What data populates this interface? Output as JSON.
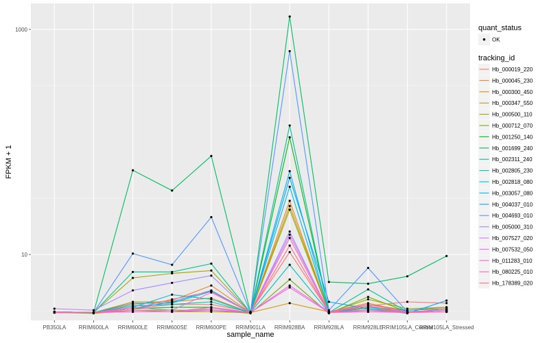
{
  "chart_data": {
    "type": "line",
    "xlabel": "sample_name",
    "ylabel": "FPKM + 1",
    "y_scale": "log10",
    "ylim": [
      2.6,
      1700
    ],
    "y_ticks": [
      10,
      1000
    ],
    "grid": true,
    "legend_position": "right",
    "categories": [
      "PB350LA",
      "RRIM600LA",
      "RRIM600LE",
      "RRIM600SE",
      "RRIM600PE",
      "RRIM901LA",
      "RRIM928BA",
      "RRIM928LA",
      "RRIM928LE",
      "RRIM105LA_Control",
      "RRIM105LA_Stressed"
    ],
    "quant_status_legend": {
      "title": "quant_status",
      "items": [
        "OK"
      ]
    },
    "tracking_legend_title": "tracking_id",
    "series": [
      {
        "name": "Hb_000019_220",
        "color": "#F8766D",
        "values": [
          3.1,
          3.05,
          3.3,
          3.6,
          3.6,
          3.1,
          10.5,
          3.1,
          3.5,
          3.8,
          3.7
        ]
      },
      {
        "name": "Hb_000045_230",
        "color": "#E9842C",
        "values": [
          3.1,
          3.05,
          3.6,
          3.9,
          5.3,
          3.05,
          30,
          3.05,
          3.6,
          3.2,
          3.4
        ]
      },
      {
        "name": "Hb_000300_450",
        "color": "#D69100",
        "values": [
          3.05,
          3.05,
          3.8,
          3.8,
          4.1,
          3.05,
          3.7,
          3.1,
          3.7,
          3.1,
          3.2
        ]
      },
      {
        "name": "Hb_000347_550",
        "color": "#BC9D00",
        "values": [
          3.1,
          3.05,
          3.1,
          3.1,
          3.1,
          3.05,
          27,
          3.1,
          3.3,
          3.1,
          3.1
        ]
      },
      {
        "name": "Hb_000500_110",
        "color": "#9CA700",
        "values": [
          3.1,
          3.05,
          6.2,
          6.8,
          7.2,
          3.05,
          25,
          3.05,
          4.0,
          3.3,
          3.4
        ]
      },
      {
        "name": "Hb_000712_070",
        "color": "#6FB000",
        "values": [
          3.05,
          3.0,
          3.2,
          3.2,
          3.2,
          3.0,
          6.0,
          3.0,
          4.2,
          3.1,
          3.2
        ]
      },
      {
        "name": "Hb_001250_140",
        "color": "#00B813",
        "values": [
          3.1,
          3.05,
          3.3,
          3.4,
          3.4,
          3.05,
          110,
          3.1,
          3.2,
          3.1,
          3.2
        ]
      },
      {
        "name": "Hb_001699_240",
        "color": "#00BD61",
        "values": [
          3.1,
          3.05,
          56,
          37,
          75,
          3.05,
          1300,
          5.7,
          5.5,
          6.4,
          9.7
        ]
      },
      {
        "name": "Hb_002311_240",
        "color": "#00C08E",
        "values": [
          3.05,
          3.05,
          7.0,
          7.0,
          8.3,
          3.05,
          140,
          3.05,
          4.9,
          3.1,
          3.2
        ]
      },
      {
        "name": "Hb_002805_230",
        "color": "#00C0B4",
        "values": [
          3.05,
          3.05,
          3.5,
          3.6,
          3.8,
          3.05,
          8.1,
          3.05,
          3.4,
          3.1,
          3.1
        ]
      },
      {
        "name": "Hb_002818_080",
        "color": "#00BDD4",
        "values": [
          3.05,
          3.05,
          3.4,
          4.4,
          4.0,
          3.05,
          40,
          3.1,
          3.2,
          3.1,
          3.2
        ]
      },
      {
        "name": "Hb_003057_080",
        "color": "#00B5EE",
        "values": [
          3.1,
          3.05,
          3.7,
          3.7,
          4.7,
          3.05,
          55,
          3.05,
          3.4,
          3.2,
          3.3
        ]
      },
      {
        "name": "Hb_004037_010",
        "color": "#00A7FF",
        "values": [
          3.1,
          3.05,
          3.3,
          3.8,
          4.8,
          3.05,
          48,
          3.8,
          3.3,
          3.0,
          3.9
        ]
      },
      {
        "name": "Hb_004693_010",
        "color": "#4F97FF",
        "values": [
          3.05,
          3.05,
          10.2,
          8.1,
          21.5,
          3.05,
          640,
          3.2,
          7.6,
          3.1,
          3.1
        ]
      },
      {
        "name": "Hb_005000_310",
        "color": "#A58AFF",
        "values": [
          3.3,
          3.2,
          4.8,
          5.6,
          6.5,
          3.05,
          16,
          3.05,
          3.2,
          3.1,
          3.1
        ]
      },
      {
        "name": "Hb_007527_020",
        "color": "#D177FF",
        "values": [
          3.05,
          3.05,
          3.1,
          3.1,
          3.3,
          3.05,
          15,
          3.1,
          3.1,
          3.1,
          3.1
        ]
      },
      {
        "name": "Hb_007532_050",
        "color": "#EC69EF",
        "values": [
          3.1,
          3.05,
          3.4,
          3.2,
          4.6,
          3.05,
          5.3,
          3.1,
          3.6,
          3.1,
          3.2
        ]
      },
      {
        "name": "Hb_011283_010",
        "color": "#FB61D7",
        "values": [
          3.05,
          3.05,
          3.1,
          3.1,
          3.2,
          3.05,
          5.1,
          3.05,
          3.1,
          3.05,
          3.1
        ]
      },
      {
        "name": "Hb_080225_010",
        "color": "#FF65B2",
        "values": [
          3.05,
          3.05,
          3.2,
          3.1,
          3.4,
          3.05,
          14,
          3.05,
          3.2,
          3.05,
          3.1
        ]
      },
      {
        "name": "Hb_178389_020",
        "color": "#FE6E8A",
        "values": [
          3.1,
          3.05,
          3.3,
          4.0,
          4.7,
          3.05,
          12,
          3.05,
          3.5,
          3.05,
          3.3
        ]
      }
    ]
  }
}
